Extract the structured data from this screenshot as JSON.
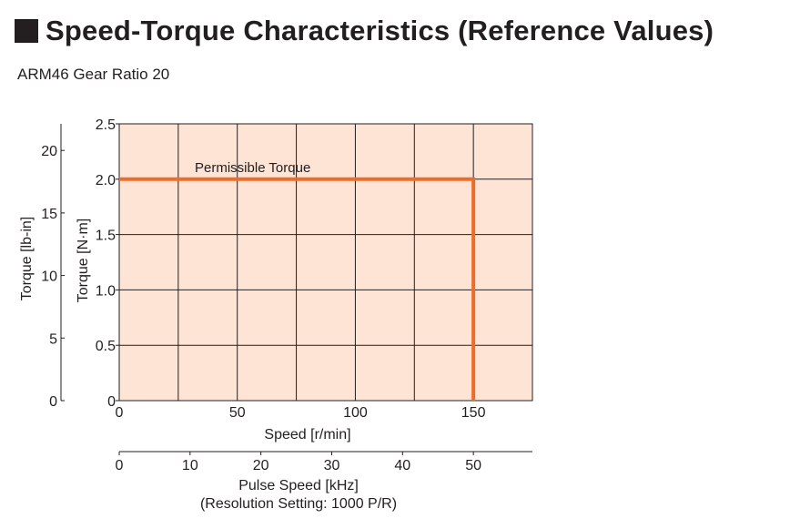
{
  "header": {
    "title": "Speed-Torque Characteristics (Reference Values)",
    "subtitle": "ARM46 Gear Ratio 20"
  },
  "colors": {
    "plot_bg": "#fde4d4",
    "grid": "#231f20",
    "series": "#ec6c2c",
    "text": "#231f20"
  },
  "chart_data": {
    "type": "line",
    "title": "",
    "xlabel": "Speed [r/min]",
    "xlim": [
      0,
      175
    ],
    "xticks": [
      0,
      50,
      100,
      150
    ],
    "x_grid": [
      0,
      25,
      50,
      75,
      100,
      125,
      150,
      175
    ],
    "ylabel": "Torque [N·m]",
    "ylim": [
      0,
      2.5
    ],
    "yticks": [
      "0",
      "0.5",
      "1.0",
      "1.5",
      "2.0",
      "2.5"
    ],
    "grid": true,
    "secondary_y": {
      "label": "Torque [lb-in]",
      "ticks": [
        0,
        5,
        10,
        15,
        20
      ]
    },
    "secondary_x": {
      "label": "Pulse Speed [kHz]",
      "label_line2": "(Resolution Setting: 1000 P/R)",
      "ticks": [
        0,
        10,
        20,
        30,
        40,
        50
      ],
      "scale_per_rpm": 0.3333
    },
    "series": [
      {
        "name": "Permissible Torque",
        "x": [
          0,
          150,
          150
        ],
        "y": [
          2.0,
          2.0,
          0
        ]
      }
    ],
    "annotations": [
      {
        "text": "Permissible Torque",
        "x": 32,
        "y": 2.0
      }
    ]
  }
}
